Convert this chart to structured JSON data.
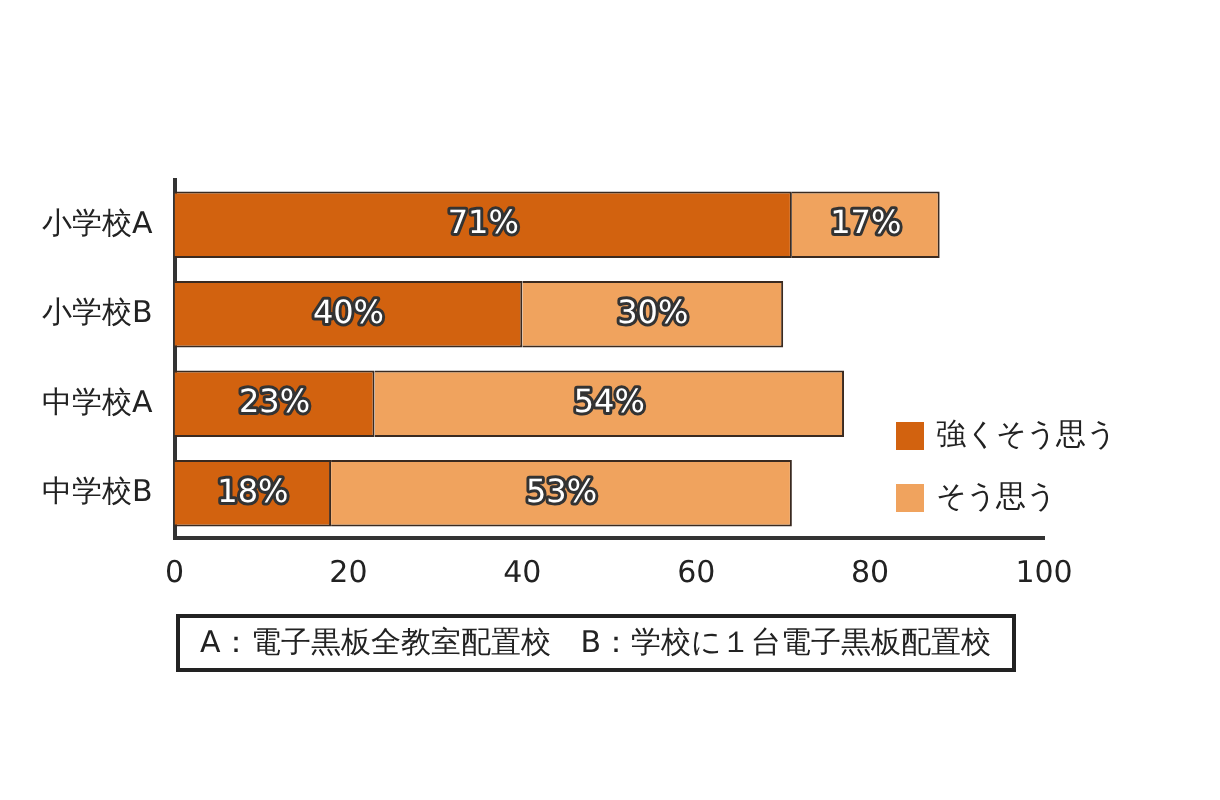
{
  "chart_data": {
    "type": "bar",
    "orientation": "horizontal",
    "stacked": true,
    "categories": [
      "小学校A",
      "小学校B",
      "中学校A",
      "中学校B"
    ],
    "series": [
      {
        "name": "強くそう思う",
        "color": "#d2620f",
        "values": [
          71,
          40,
          23,
          18
        ],
        "value_labels": [
          "71%",
          "40%",
          "23%",
          "18%"
        ]
      },
      {
        "name": "そう思う",
        "color": "#f0a35e",
        "values": [
          17,
          30,
          54,
          53
        ],
        "value_labels": [
          "17%",
          "30%",
          "54%",
          "53%"
        ]
      }
    ],
    "xlim": [
      0,
      100
    ],
    "xticks": [
      0,
      20,
      40,
      60,
      80,
      100
    ],
    "grid": false,
    "legend": "right",
    "annotations": [
      "A：電子黒板全教室配置校　B：学校に１台電子黒板配置校"
    ]
  }
}
